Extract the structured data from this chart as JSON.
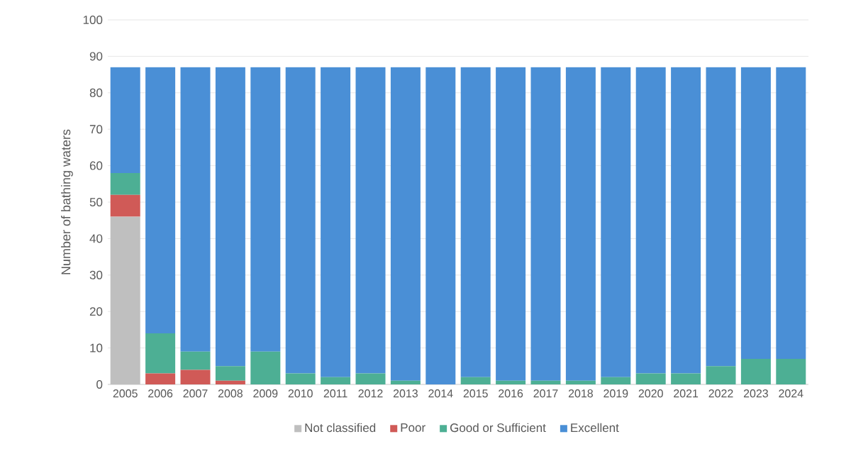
{
  "chart_data": {
    "type": "bar",
    "stacked": true,
    "ylabel": "Number of bathing waters",
    "categories": [
      "2005",
      "2006",
      "2007",
      "2008",
      "2009",
      "2010",
      "2011",
      "2012",
      "2013",
      "2014",
      "2015",
      "2016",
      "2017",
      "2018",
      "2019",
      "2020",
      "2021",
      "2022",
      "2023",
      "2024"
    ],
    "series": [
      {
        "name": "Not classified",
        "color": "#bfbfbf",
        "values": [
          46,
          0,
          0,
          0,
          0,
          0,
          0,
          0,
          0,
          0,
          0,
          0,
          0,
          0,
          0,
          0,
          0,
          0,
          0,
          0
        ]
      },
      {
        "name": "Poor",
        "color": "#d05a57",
        "values": [
          6,
          3,
          4,
          1,
          0,
          0,
          0,
          0,
          0,
          0,
          0,
          0,
          0,
          0,
          0,
          0,
          0,
          0,
          0,
          0
        ]
      },
      {
        "name": "Good or Sufficient",
        "color": "#4daf94",
        "values": [
          6,
          11,
          5,
          4,
          9,
          3,
          2,
          3,
          1,
          0,
          2,
          1,
          1,
          1,
          2,
          3,
          3,
          5,
          7,
          7
        ]
      },
      {
        "name": "Excellent",
        "color": "#4a8fd6",
        "values": [
          29,
          73,
          78,
          82,
          78,
          84,
          85,
          84,
          86,
          87,
          85,
          86,
          86,
          86,
          85,
          84,
          84,
          82,
          80,
          80
        ]
      }
    ],
    "ylim": [
      0,
      100
    ],
    "yticks": [
      0,
      10,
      20,
      30,
      40,
      50,
      60,
      70,
      80,
      90,
      100
    ],
    "grid": "y",
    "legend": "bottom"
  }
}
